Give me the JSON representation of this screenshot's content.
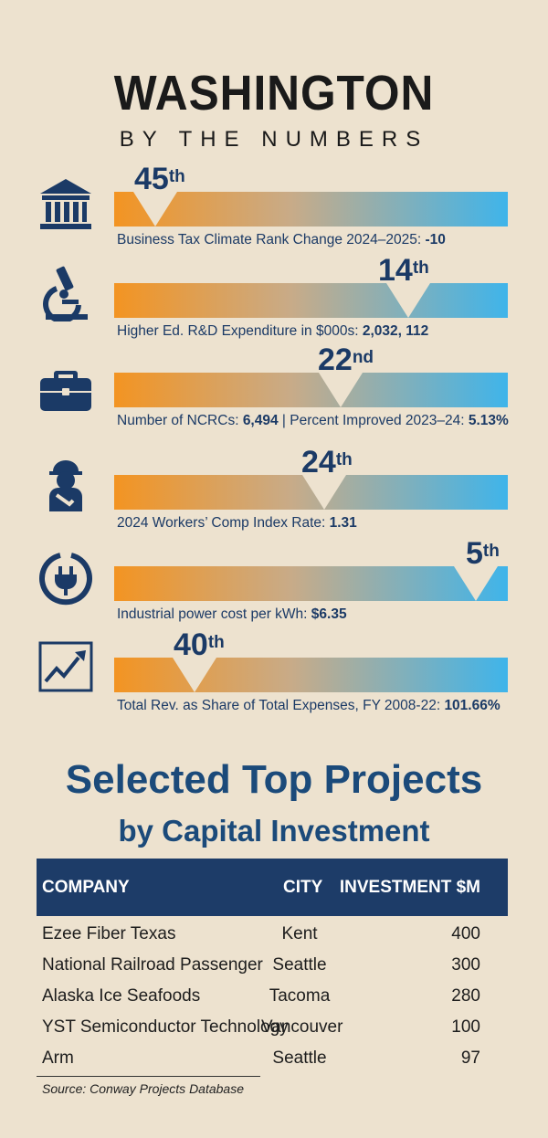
{
  "header": {
    "title": "WASHINGTON",
    "subtitle": "BY THE NUMBERS"
  },
  "colors": {
    "bar_start": "#f39422",
    "bar_mid": "#c8ab88",
    "bar_end": "#3fb4ea",
    "navy": "#1b3a66",
    "table_header": "#1d3c68",
    "background": "#ede2cf"
  },
  "metrics": [
    {
      "icon": "bank-building-icon",
      "rank_num": "45",
      "rank_suffix": "th",
      "rank": 45,
      "label": "Business Tax Climate Rank Change 2024–2025:",
      "value": "-10"
    },
    {
      "icon": "microscope-icon",
      "rank_num": "14",
      "rank_suffix": "th",
      "rank": 14,
      "label": "Higher Ed. R&D Expenditure in $000s:",
      "value": "2,032, 112"
    },
    {
      "icon": "briefcase-icon",
      "rank_num": "22",
      "rank_suffix": "nd",
      "rank": 22,
      "label": "Number of NCRCs:",
      "value": "6,494",
      "label2": "| Percent Improved 2023–24:",
      "value2": "5.13%"
    },
    {
      "icon": "injured-worker-icon",
      "rank_num": "24",
      "rank_suffix": "th",
      "rank": 24,
      "label": "2024 Workers’ Comp Index Rate:",
      "value": "1.31"
    },
    {
      "icon": "power-plug-icon",
      "rank_num": "5",
      "rank_suffix": "th",
      "rank": 5,
      "label": "Industrial power cost per kWh:",
      "value": "$6.35"
    },
    {
      "icon": "trend-chart-icon",
      "rank_num": "40",
      "rank_suffix": "th",
      "rank": 40,
      "label": "Total Rev. as Share of Total Expenses, FY 2008-22:",
      "value": "101.66%"
    }
  ],
  "projects": {
    "title": "Selected Top Projects",
    "subtitle": "by Capital Investment",
    "columns": [
      "COMPANY",
      "CITY",
      "INVESTMENT $M"
    ],
    "rows": [
      {
        "company": "Ezee Fiber Texas",
        "city": "Kent",
        "investment": "400"
      },
      {
        "company": "National Railroad Passenger",
        "city": "Seattle",
        "investment": "300"
      },
      {
        "company": "Alaska Ice Seafoods",
        "city": "Tacoma",
        "investment": "280"
      },
      {
        "company": "YST Semiconductor Technology",
        "city": "Vancouver",
        "investment": "100"
      },
      {
        "company": "Arm",
        "city": "Seattle",
        "investment": "97"
      }
    ],
    "source": "Source: Conway Projects Database"
  }
}
